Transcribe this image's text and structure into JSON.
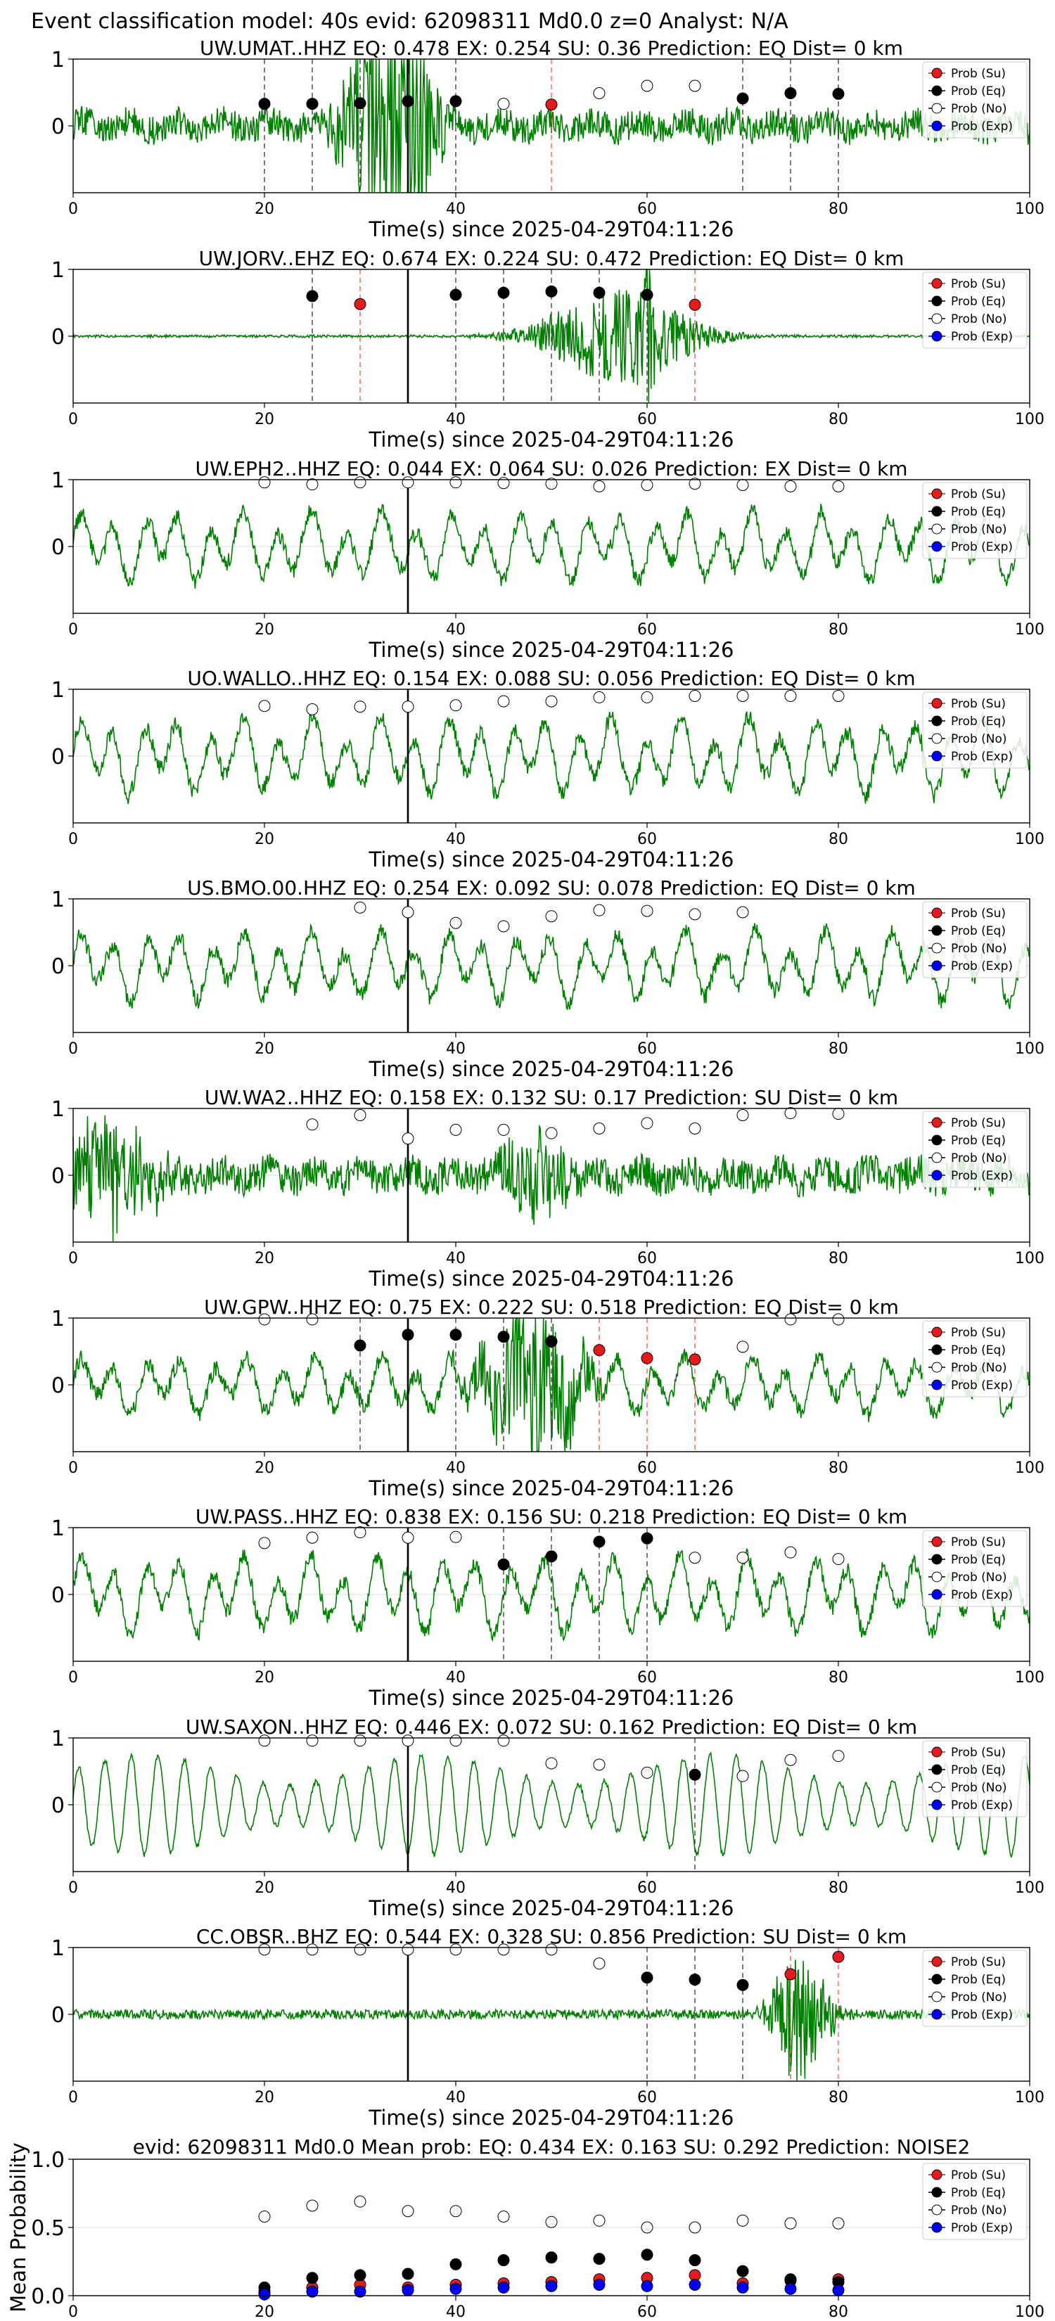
{
  "suptitle": "Event classification model: 40s evid: 62098311 Md0.0 z=0 Analyst: N/A",
  "legend_items": [
    {
      "label": "Prob (Su)",
      "color": "#e41a1c",
      "filled": true
    },
    {
      "label": "Prob (Eq)",
      "color": "#000000",
      "filled": true
    },
    {
      "label": "Prob (No)",
      "color": "#ffffff",
      "filled": false
    },
    {
      "label": "Prob (Exp)",
      "color": "#0000ff",
      "filled": true
    }
  ],
  "colors": {
    "waveform": "#008000",
    "su": "#e41a1c",
    "eq": "#000000",
    "exp": "#0000ff",
    "grid": "#dddddd"
  },
  "chart_data": [
    {
      "type": "line",
      "title": "UW.UMAT..HHZ   EQ: 0.478  EX: 0.254  SU: 0.36   Prediction: EQ    Dist= 0 km",
      "xlabel": "Time(s) since 2025-04-29T04:11:26",
      "ylabel": "",
      "xlim": [
        0,
        100
      ],
      "ylim": [
        -1,
        1
      ],
      "xticks": [
        0,
        20,
        40,
        60,
        80,
        100
      ],
      "yticks": [
        0,
        1
      ],
      "wave": {
        "seed": 11,
        "style": "noise",
        "amp": 0.22,
        "bursts": [
          {
            "t": 35,
            "w": 3,
            "a": 2.4
          },
          {
            "t": 31,
            "w": 3,
            "a": 1.4
          }
        ]
      },
      "arrival": 35,
      "points": [
        {
          "x": 20,
          "y": 0.33,
          "c": "eq"
        },
        {
          "x": 25,
          "y": 0.33,
          "c": "eq"
        },
        {
          "x": 30,
          "y": 0.34,
          "c": "eq"
        },
        {
          "x": 35,
          "y": 0.37,
          "c": "eq"
        },
        {
          "x": 40,
          "y": 0.37,
          "c": "eq"
        },
        {
          "x": 45,
          "y": 0.33,
          "c": "no"
        },
        {
          "x": 50,
          "y": 0.32,
          "c": "su"
        },
        {
          "x": 55,
          "y": 0.49,
          "c": "no"
        },
        {
          "x": 60,
          "y": 0.6,
          "c": "no"
        },
        {
          "x": 65,
          "y": 0.6,
          "c": "no"
        },
        {
          "x": 70,
          "y": 0.41,
          "c": "eq"
        },
        {
          "x": 75,
          "y": 0.49,
          "c": "eq"
        },
        {
          "x": 80,
          "y": 0.48,
          "c": "eq"
        }
      ]
    },
    {
      "type": "line",
      "title": "UW.JORV..EHZ   EQ: 0.674  EX: 0.224  SU: 0.472   Prediction: EQ    Dist= 0 km",
      "xlabel": "Time(s) since 2025-04-29T04:11:26",
      "ylabel": "",
      "xlim": [
        0,
        100
      ],
      "ylim": [
        -1,
        1
      ],
      "xticks": [
        0,
        20,
        40,
        60,
        80,
        100
      ],
      "yticks": [
        0,
        1
      ],
      "wave": {
        "seed": 23,
        "style": "quiet",
        "amp": 0.02,
        "bursts": [
          {
            "t": 57,
            "w": 8,
            "a": 0.7
          },
          {
            "t": 60,
            "w": 1,
            "a": 1.8
          }
        ]
      },
      "arrival": 35,
      "points": [
        {
          "x": 25,
          "y": 0.6,
          "c": "eq"
        },
        {
          "x": 30,
          "y": 0.48,
          "c": "su"
        },
        {
          "x": 40,
          "y": 0.62,
          "c": "eq"
        },
        {
          "x": 45,
          "y": 0.65,
          "c": "eq"
        },
        {
          "x": 50,
          "y": 0.67,
          "c": "eq"
        },
        {
          "x": 55,
          "y": 0.65,
          "c": "eq"
        },
        {
          "x": 60,
          "y": 0.62,
          "c": "eq"
        },
        {
          "x": 65,
          "y": 0.47,
          "c": "su"
        }
      ]
    },
    {
      "type": "line",
      "title": "UW.EPH2..HHZ   EQ: 0.044  EX: 0.064  SU: 0.026   Prediction: EX    Dist= 0 km",
      "xlabel": "Time(s) since 2025-04-29T04:11:26",
      "ylabel": "",
      "xlim": [
        0,
        100
      ],
      "ylim": [
        -1,
        1
      ],
      "xticks": [
        0,
        20,
        40,
        60,
        80,
        100
      ],
      "yticks": [
        0,
        1
      ],
      "wave": {
        "seed": 37,
        "style": "wave",
        "amp": 0.55,
        "bursts": []
      },
      "arrival": 35,
      "points": [
        {
          "x": 20,
          "y": 0.96,
          "c": "no"
        },
        {
          "x": 25,
          "y": 0.93,
          "c": "no"
        },
        {
          "x": 30,
          "y": 0.96,
          "c": "no"
        },
        {
          "x": 35,
          "y": 0.96,
          "c": "no"
        },
        {
          "x": 40,
          "y": 0.96,
          "c": "no"
        },
        {
          "x": 45,
          "y": 0.95,
          "c": "no"
        },
        {
          "x": 50,
          "y": 0.94,
          "c": "no"
        },
        {
          "x": 55,
          "y": 0.9,
          "c": "no"
        },
        {
          "x": 60,
          "y": 0.92,
          "c": "no"
        },
        {
          "x": 65,
          "y": 0.94,
          "c": "no"
        },
        {
          "x": 70,
          "y": 0.92,
          "c": "no"
        },
        {
          "x": 75,
          "y": 0.9,
          "c": "no"
        },
        {
          "x": 80,
          "y": 0.9,
          "c": "no"
        }
      ]
    },
    {
      "type": "line",
      "title": "UO.WALLO..HHZ   EQ: 0.154  EX: 0.088  SU: 0.056   Prediction: EQ    Dist= 0 km",
      "xlabel": "Time(s) since 2025-04-29T04:11:26",
      "ylabel": "",
      "xlim": [
        0,
        100
      ],
      "ylim": [
        -1,
        1
      ],
      "xticks": [
        0,
        20,
        40,
        60,
        80,
        100
      ],
      "yticks": [
        0,
        1
      ],
      "wave": {
        "seed": 41,
        "style": "wave",
        "amp": 0.6,
        "bursts": []
      },
      "arrival": 35,
      "points": [
        {
          "x": 20,
          "y": 0.75,
          "c": "no"
        },
        {
          "x": 25,
          "y": 0.7,
          "c": "no"
        },
        {
          "x": 30,
          "y": 0.74,
          "c": "no"
        },
        {
          "x": 35,
          "y": 0.74,
          "c": "no"
        },
        {
          "x": 40,
          "y": 0.76,
          "c": "no"
        },
        {
          "x": 45,
          "y": 0.82,
          "c": "no"
        },
        {
          "x": 50,
          "y": 0.82,
          "c": "no"
        },
        {
          "x": 55,
          "y": 0.88,
          "c": "no"
        },
        {
          "x": 60,
          "y": 0.88,
          "c": "no"
        },
        {
          "x": 65,
          "y": 0.9,
          "c": "no"
        },
        {
          "x": 70,
          "y": 0.9,
          "c": "no"
        },
        {
          "x": 75,
          "y": 0.9,
          "c": "no"
        },
        {
          "x": 80,
          "y": 0.9,
          "c": "no"
        }
      ]
    },
    {
      "type": "line",
      "title": "US.BMO.00.HHZ   EQ: 0.254  EX: 0.092  SU: 0.078   Prediction: EQ    Dist= 0 km",
      "xlabel": "Time(s) since 2025-04-29T04:11:26",
      "ylabel": "",
      "xlim": [
        0,
        100
      ],
      "ylim": [
        -1,
        1
      ],
      "xticks": [
        0,
        20,
        40,
        60,
        80,
        100
      ],
      "yticks": [
        0,
        1
      ],
      "wave": {
        "seed": 53,
        "style": "wave",
        "amp": 0.55,
        "bursts": []
      },
      "arrival": 35,
      "points": [
        {
          "x": 30,
          "y": 0.87,
          "c": "no"
        },
        {
          "x": 35,
          "y": 0.8,
          "c": "no"
        },
        {
          "x": 40,
          "y": 0.64,
          "c": "no"
        },
        {
          "x": 45,
          "y": 0.59,
          "c": "no"
        },
        {
          "x": 50,
          "y": 0.74,
          "c": "no"
        },
        {
          "x": 55,
          "y": 0.83,
          "c": "no"
        },
        {
          "x": 60,
          "y": 0.82,
          "c": "no"
        },
        {
          "x": 65,
          "y": 0.77,
          "c": "no"
        },
        {
          "x": 70,
          "y": 0.8,
          "c": "no"
        }
      ]
    },
    {
      "type": "line",
      "title": "UW.WA2..HHZ   EQ: 0.158  EX: 0.132  SU: 0.17   Prediction: SU    Dist= 0 km",
      "xlabel": "Time(s) since 2025-04-29T04:11:26",
      "ylabel": "",
      "xlim": [
        0,
        100
      ],
      "ylim": [
        -1,
        1
      ],
      "xticks": [
        0,
        20,
        40,
        60,
        80,
        100
      ],
      "yticks": [
        0,
        1
      ],
      "wave": {
        "seed": 61,
        "style": "noise",
        "amp": 0.25,
        "bursts": [
          {
            "t": 3,
            "w": 6,
            "a": 0.8
          },
          {
            "t": 48,
            "w": 4,
            "a": 0.6
          }
        ]
      },
      "arrival": 35,
      "points": [
        {
          "x": 25,
          "y": 0.76,
          "c": "no"
        },
        {
          "x": 30,
          "y": 0.9,
          "c": "no"
        },
        {
          "x": 35,
          "y": 0.55,
          "c": "no"
        },
        {
          "x": 40,
          "y": 0.68,
          "c": "no"
        },
        {
          "x": 45,
          "y": 0.68,
          "c": "no"
        },
        {
          "x": 50,
          "y": 0.63,
          "c": "no"
        },
        {
          "x": 55,
          "y": 0.7,
          "c": "no"
        },
        {
          "x": 60,
          "y": 0.78,
          "c": "no"
        },
        {
          "x": 65,
          "y": 0.7,
          "c": "no"
        },
        {
          "x": 70,
          "y": 0.9,
          "c": "no"
        },
        {
          "x": 75,
          "y": 0.93,
          "c": "no"
        },
        {
          "x": 80,
          "y": 0.92,
          "c": "no"
        }
      ]
    },
    {
      "type": "line",
      "title": "UW.GPW..HHZ   EQ: 0.75  EX: 0.222  SU: 0.518   Prediction: EQ    Dist= 0 km",
      "xlabel": "Time(s) since 2025-04-29T04:11:26",
      "ylabel": "",
      "xlim": [
        0,
        100
      ],
      "ylim": [
        -1,
        1
      ],
      "xticks": [
        0,
        20,
        40,
        60,
        80,
        100
      ],
      "yticks": [
        0,
        1
      ],
      "wave": {
        "seed": 73,
        "style": "wave",
        "amp": 0.45,
        "bursts": [
          {
            "t": 48,
            "w": 5,
            "a": 1.3
          }
        ]
      },
      "arrival": 35,
      "points": [
        {
          "x": 20,
          "y": 0.98,
          "c": "no"
        },
        {
          "x": 25,
          "y": 0.98,
          "c": "no"
        },
        {
          "x": 30,
          "y": 0.59,
          "c": "eq"
        },
        {
          "x": 35,
          "y": 0.75,
          "c": "eq"
        },
        {
          "x": 40,
          "y": 0.75,
          "c": "eq"
        },
        {
          "x": 45,
          "y": 0.72,
          "c": "eq"
        },
        {
          "x": 50,
          "y": 0.65,
          "c": "eq"
        },
        {
          "x": 55,
          "y": 0.52,
          "c": "su"
        },
        {
          "x": 60,
          "y": 0.4,
          "c": "su"
        },
        {
          "x": 65,
          "y": 0.38,
          "c": "su"
        },
        {
          "x": 70,
          "y": 0.57,
          "c": "no"
        },
        {
          "x": 75,
          "y": 0.98,
          "c": "no"
        },
        {
          "x": 80,
          "y": 0.98,
          "c": "no"
        }
      ]
    },
    {
      "type": "line",
      "title": "UW.PASS..HHZ   EQ: 0.838  EX: 0.156  SU: 0.218   Prediction: EQ    Dist= 0 km",
      "xlabel": "Time(s) since 2025-04-29T04:11:26",
      "ylabel": "",
      "xlim": [
        0,
        100
      ],
      "ylim": [
        -1,
        1
      ],
      "xticks": [
        0,
        20,
        40,
        60,
        80,
        100
      ],
      "yticks": [
        0,
        1
      ],
      "wave": {
        "seed": 89,
        "style": "wave",
        "amp": 0.6,
        "bursts": []
      },
      "arrival": 35,
      "points": [
        {
          "x": 20,
          "y": 0.77,
          "c": "no"
        },
        {
          "x": 25,
          "y": 0.85,
          "c": "no"
        },
        {
          "x": 30,
          "y": 0.93,
          "c": "no"
        },
        {
          "x": 35,
          "y": 0.85,
          "c": "no"
        },
        {
          "x": 40,
          "y": 0.86,
          "c": "no"
        },
        {
          "x": 45,
          "y": 0.45,
          "c": "eq"
        },
        {
          "x": 50,
          "y": 0.57,
          "c": "eq"
        },
        {
          "x": 55,
          "y": 0.79,
          "c": "eq"
        },
        {
          "x": 60,
          "y": 0.84,
          "c": "eq"
        },
        {
          "x": 65,
          "y": 0.55,
          "c": "no"
        },
        {
          "x": 70,
          "y": 0.55,
          "c": "no"
        },
        {
          "x": 75,
          "y": 0.63,
          "c": "no"
        },
        {
          "x": 80,
          "y": 0.53,
          "c": "no"
        }
      ]
    },
    {
      "type": "line",
      "title": "UW.SAXON..HHZ   EQ: 0.446  EX: 0.072  SU: 0.162   Prediction: EQ    Dist= 0 km",
      "xlabel": "Time(s) since 2025-04-29T04:11:26",
      "ylabel": "",
      "xlim": [
        0,
        100
      ],
      "ylim": [
        -1,
        1
      ],
      "xticks": [
        0,
        20,
        40,
        60,
        80,
        100
      ],
      "yticks": [
        0,
        1
      ],
      "wave": {
        "seed": 97,
        "style": "smooth",
        "amp": 0.75,
        "bursts": []
      },
      "arrival": 35,
      "points": [
        {
          "x": 20,
          "y": 0.96,
          "c": "no"
        },
        {
          "x": 25,
          "y": 0.96,
          "c": "no"
        },
        {
          "x": 30,
          "y": 0.96,
          "c": "no"
        },
        {
          "x": 35,
          "y": 0.96,
          "c": "no"
        },
        {
          "x": 40,
          "y": 0.96,
          "c": "no"
        },
        {
          "x": 45,
          "y": 0.96,
          "c": "no"
        },
        {
          "x": 50,
          "y": 0.62,
          "c": "no"
        },
        {
          "x": 55,
          "y": 0.6,
          "c": "no"
        },
        {
          "x": 60,
          "y": 0.48,
          "c": "no"
        },
        {
          "x": 65,
          "y": 0.45,
          "c": "eq"
        },
        {
          "x": 70,
          "y": 0.43,
          "c": "no"
        },
        {
          "x": 75,
          "y": 0.67,
          "c": "no"
        },
        {
          "x": 80,
          "y": 0.73,
          "c": "no"
        }
      ]
    },
    {
      "type": "line",
      "title": "CC.OBSR..BHZ   EQ: 0.544  EX: 0.328  SU: 0.856   Prediction: SU    Dist= 0 km",
      "xlabel": "Time(s) since 2025-04-29T04:11:26",
      "ylabel": "",
      "xlim": [
        0,
        100
      ],
      "ylim": [
        -1,
        1
      ],
      "xticks": [
        0,
        20,
        40,
        60,
        80,
        100
      ],
      "yticks": [
        0,
        1
      ],
      "wave": {
        "seed": 101,
        "style": "quiet",
        "amp": 0.07,
        "bursts": [
          {
            "t": 76,
            "w": 3,
            "a": 1.0
          }
        ]
      },
      "arrival": 35,
      "points": [
        {
          "x": 20,
          "y": 0.97,
          "c": "no"
        },
        {
          "x": 25,
          "y": 0.97,
          "c": "no"
        },
        {
          "x": 30,
          "y": 0.97,
          "c": "no"
        },
        {
          "x": 35,
          "y": 0.97,
          "c": "no"
        },
        {
          "x": 40,
          "y": 0.97,
          "c": "no"
        },
        {
          "x": 45,
          "y": 0.97,
          "c": "no"
        },
        {
          "x": 50,
          "y": 0.97,
          "c": "no"
        },
        {
          "x": 55,
          "y": 0.76,
          "c": "no"
        },
        {
          "x": 60,
          "y": 0.55,
          "c": "eq"
        },
        {
          "x": 65,
          "y": 0.52,
          "c": "eq"
        },
        {
          "x": 70,
          "y": 0.44,
          "c": "eq"
        },
        {
          "x": 75,
          "y": 0.6,
          "c": "su"
        },
        {
          "x": 80,
          "y": 0.86,
          "c": "su"
        }
      ]
    },
    {
      "type": "scatter",
      "title": "evid: 62098311  Md0.0   Mean prob:   EQ: 0.434  EX: 0.163  SU: 0.292   Prediction: NOISE2",
      "xlabel": "",
      "ylabel": "Mean Probability",
      "xlim": [
        0,
        100
      ],
      "ylim": [
        0,
        1
      ],
      "xticks": [
        0,
        20,
        40,
        60,
        80,
        100
      ],
      "yticks": [
        0.0,
        0.5,
        1.0
      ],
      "series": [
        {
          "name": "Prob (Su)",
          "c": "su",
          "x": [
            20,
            25,
            30,
            35,
            40,
            45,
            50,
            55,
            60,
            65,
            70,
            75,
            80
          ],
          "values": [
            0.03,
            0.06,
            0.08,
            0.06,
            0.08,
            0.09,
            0.1,
            0.12,
            0.13,
            0.15,
            0.09,
            0.11,
            0.12
          ]
        },
        {
          "name": "Prob (Eq)",
          "c": "eq",
          "x": [
            20,
            25,
            30,
            35,
            40,
            45,
            50,
            55,
            60,
            65,
            70,
            75,
            80
          ],
          "values": [
            0.06,
            0.13,
            0.15,
            0.16,
            0.23,
            0.26,
            0.28,
            0.27,
            0.3,
            0.26,
            0.18,
            0.12,
            0.1
          ]
        },
        {
          "name": "Prob (No)",
          "c": "no",
          "x": [
            20,
            25,
            30,
            35,
            40,
            45,
            50,
            55,
            60,
            65,
            70,
            75,
            80
          ],
          "values": [
            0.58,
            0.66,
            0.69,
            0.62,
            0.62,
            0.58,
            0.54,
            0.55,
            0.5,
            0.5,
            0.55,
            0.53,
            0.53
          ]
        },
        {
          "name": "Prob (Exp)",
          "c": "exp",
          "x": [
            20,
            25,
            30,
            35,
            40,
            45,
            50,
            55,
            60,
            65,
            70,
            75,
            80
          ],
          "values": [
            0.01,
            0.03,
            0.03,
            0.04,
            0.05,
            0.06,
            0.07,
            0.08,
            0.07,
            0.08,
            0.06,
            0.05,
            0.04
          ]
        }
      ]
    }
  ]
}
